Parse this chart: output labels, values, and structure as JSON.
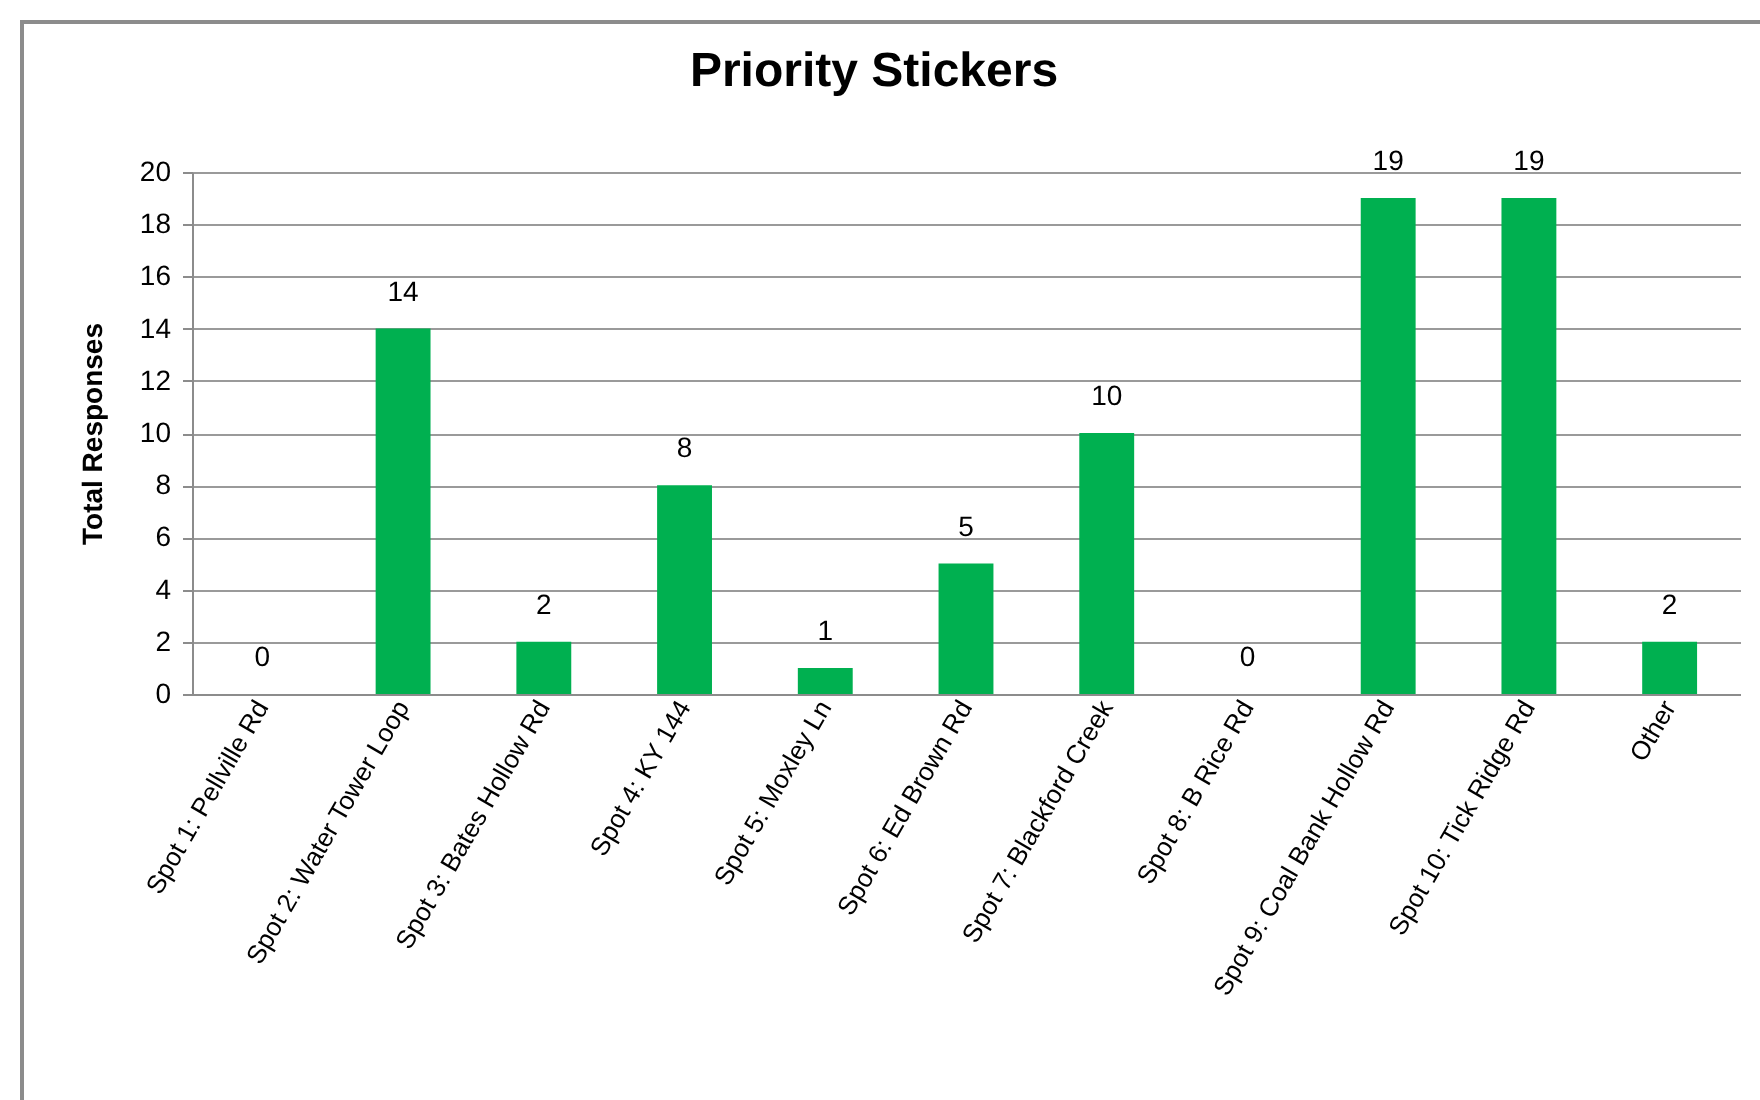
{
  "chart_data": {
    "type": "bar",
    "title": "Priority Stickers",
    "ylabel": "Total Responses",
    "categories": [
      "Spot 1: Pellville Rd",
      "Spot 2: Water Tower Loop",
      "Spot 3: Bates Hollow Rd",
      "Spot 4: KY 144",
      "Spot 5: Moxley Ln",
      "Spot 6: Ed Brown Rd",
      "Spot 7: Blackford Creek",
      "Spot 8: B Rice Rd",
      "Spot 9: Coal Bank Hollow Rd",
      "Spot 10: Tick Ridge Rd",
      "Other"
    ],
    "values": [
      0,
      14,
      2,
      8,
      1,
      5,
      10,
      0,
      19,
      19,
      2
    ],
    "color": "#00b050",
    "ylim": [
      0,
      20
    ],
    "yticks": [
      0,
      2,
      4,
      6,
      8,
      10,
      12,
      14,
      16,
      18,
      20
    ],
    "grid": "y",
    "data_labels": true
  }
}
